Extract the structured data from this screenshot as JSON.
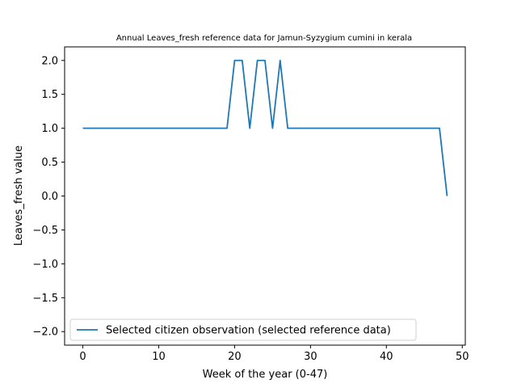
{
  "chart_data": {
    "type": "line",
    "title": "Annual Leaves_fresh reference data for Jamun-Syzygium cumini in kerala",
    "xlabel": "Week of the year (0-47)",
    "ylabel": "Leaves_fresh value",
    "xlim": [
      -2.4,
      50.4
    ],
    "ylim": [
      -2.2,
      2.2
    ],
    "xticks": [
      0,
      10,
      20,
      30,
      40,
      50
    ],
    "xtick_labels": [
      "0",
      "10",
      "20",
      "30",
      "40",
      "50"
    ],
    "yticks": [
      2.0,
      1.5,
      1.0,
      0.5,
      0.0,
      -0.5,
      -1.0,
      -1.5,
      -2.0
    ],
    "ytick_labels": [
      "2.0",
      "1.5",
      "1.0",
      "0.5",
      "0.0",
      "−0.5",
      "−1.0",
      "−1.5",
      "−2.0"
    ],
    "grid": false,
    "legend_position": "lower-left",
    "series": [
      {
        "name": "Selected citizen observation (selected reference data)",
        "color": "#1f77b4",
        "x": [
          0,
          1,
          2,
          3,
          4,
          5,
          6,
          7,
          8,
          9,
          10,
          11,
          12,
          13,
          14,
          15,
          16,
          17,
          18,
          19,
          20,
          21,
          22,
          23,
          24,
          25,
          26,
          27,
          28,
          29,
          30,
          31,
          32,
          33,
          34,
          35,
          36,
          37,
          38,
          39,
          40,
          41,
          42,
          43,
          44,
          45,
          46,
          47,
          48
        ],
        "y": [
          1,
          1,
          1,
          1,
          1,
          1,
          1,
          1,
          1,
          1,
          1,
          1,
          1,
          1,
          1,
          1,
          1,
          1,
          1,
          1,
          2,
          2,
          1,
          2,
          2,
          1,
          2,
          1,
          1,
          1,
          1,
          1,
          1,
          1,
          1,
          1,
          1,
          1,
          1,
          1,
          1,
          1,
          1,
          1,
          1,
          1,
          1,
          1,
          0
        ]
      }
    ]
  }
}
